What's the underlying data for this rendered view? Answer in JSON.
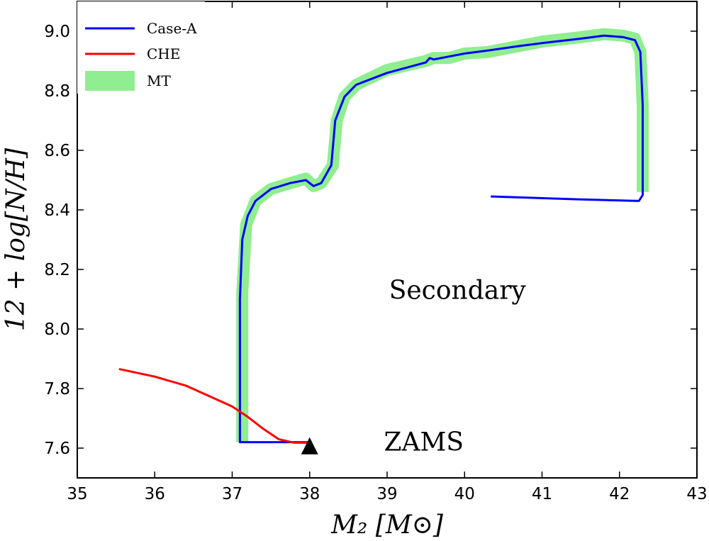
{
  "chart_data": {
    "type": "line",
    "title": "",
    "xlabel": "M₂ [M⊙]",
    "ylabel": "12 + log[N/H]",
    "xlim": [
      35,
      43
    ],
    "ylim": [
      7.5,
      9.1
    ],
    "xticks": [
      35,
      36,
      37,
      38,
      39,
      40,
      41,
      42,
      43
    ],
    "xtick_labels": [
      "35",
      "36",
      "37",
      "38",
      "39",
      "40",
      "41",
      "42",
      "43"
    ],
    "yticks": [
      7.6,
      7.8,
      8.0,
      8.2,
      8.4,
      8.6,
      8.8,
      9.0
    ],
    "ytick_labels": [
      "7.6",
      "7.8",
      "8.0",
      "8.2",
      "8.4",
      "8.6",
      "8.8",
      "9.0"
    ],
    "legend_position": "top-left",
    "legend": [
      "Case-A",
      "CHE",
      "MT"
    ],
    "series": [
      {
        "name": "MT",
        "color": "#90ee90",
        "style": "thick",
        "points": [
          [
            37.13,
            7.62
          ],
          [
            37.13,
            8.12
          ],
          [
            37.18,
            8.35
          ],
          [
            37.3,
            8.43
          ],
          [
            37.5,
            8.47
          ],
          [
            37.75,
            8.49
          ],
          [
            37.95,
            8.505
          ],
          [
            38.05,
            8.48
          ],
          [
            38.15,
            8.49
          ],
          [
            38.3,
            8.55
          ],
          [
            38.35,
            8.7
          ],
          [
            38.45,
            8.78
          ],
          [
            38.6,
            8.82
          ],
          [
            39.0,
            8.87
          ],
          [
            39.5,
            8.9
          ],
          [
            39.6,
            8.91
          ],
          [
            39.8,
            8.91
          ],
          [
            40.0,
            8.925
          ],
          [
            40.3,
            8.93
          ],
          [
            40.7,
            8.95
          ],
          [
            41.0,
            8.965
          ],
          [
            41.5,
            8.98
          ],
          [
            41.8,
            8.99
          ],
          [
            42.05,
            8.985
          ],
          [
            42.2,
            8.975
          ],
          [
            42.27,
            8.93
          ],
          [
            42.3,
            8.75
          ],
          [
            42.3,
            8.46
          ]
        ]
      },
      {
        "name": "Case-A",
        "color": "#0000ff",
        "style": "line",
        "points": [
          [
            38.0,
            7.62
          ],
          [
            37.1,
            7.62
          ],
          [
            37.1,
            8.1
          ],
          [
            37.13,
            8.3
          ],
          [
            37.2,
            8.38
          ],
          [
            37.3,
            8.43
          ],
          [
            37.5,
            8.47
          ],
          [
            37.75,
            8.49
          ],
          [
            37.95,
            8.5
          ],
          [
            38.05,
            8.48
          ],
          [
            38.15,
            8.49
          ],
          [
            38.28,
            8.55
          ],
          [
            38.33,
            8.7
          ],
          [
            38.45,
            8.78
          ],
          [
            38.6,
            8.82
          ],
          [
            39.0,
            8.86
          ],
          [
            39.5,
            8.895
          ],
          [
            39.55,
            8.91
          ],
          [
            39.6,
            8.905
          ],
          [
            39.8,
            8.915
          ],
          [
            40.0,
            8.925
          ],
          [
            40.3,
            8.935
          ],
          [
            40.7,
            8.95
          ],
          [
            41.0,
            8.96
          ],
          [
            41.5,
            8.975
          ],
          [
            41.8,
            8.985
          ],
          [
            42.05,
            8.98
          ],
          [
            42.2,
            8.97
          ],
          [
            42.27,
            8.93
          ],
          [
            42.3,
            8.75
          ],
          [
            42.3,
            8.45
          ],
          [
            42.25,
            8.43
          ],
          [
            41.5,
            8.435
          ],
          [
            40.35,
            8.445
          ]
        ]
      },
      {
        "name": "CHE",
        "color": "#ff0000",
        "style": "line",
        "points": [
          [
            35.55,
            7.865
          ],
          [
            36.0,
            7.84
          ],
          [
            36.4,
            7.81
          ],
          [
            36.7,
            7.775
          ],
          [
            37.0,
            7.74
          ],
          [
            37.2,
            7.705
          ],
          [
            37.4,
            7.665
          ],
          [
            37.6,
            7.63
          ],
          [
            37.8,
            7.618
          ],
          [
            38.0,
            7.618
          ]
        ]
      }
    ],
    "markers": [
      {
        "name": "ZAMS",
        "shape": "triangle",
        "color": "#000000",
        "x": 38.0,
        "y": 7.61
      }
    ],
    "annotations": [
      {
        "text": "Secondary",
        "x": 40.0,
        "y": 8.13
      },
      {
        "text": "ZAMS",
        "x": 39.05,
        "y": 7.62
      }
    ]
  }
}
